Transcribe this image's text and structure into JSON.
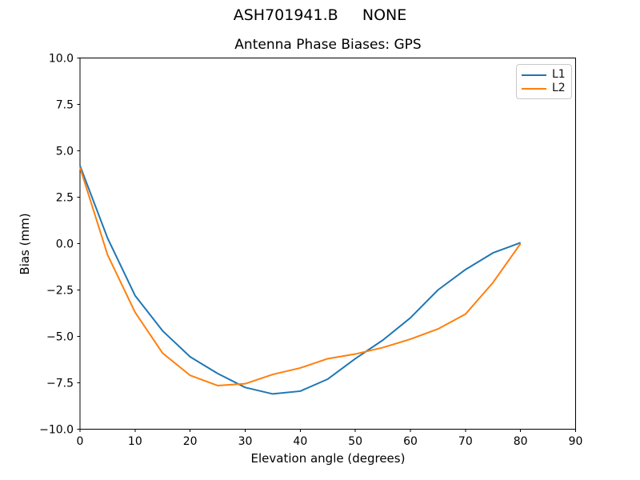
{
  "figure": {
    "suptitle": "ASH701941.B     NONE"
  },
  "chart_data": {
    "type": "line",
    "title": "Antenna Phase Biases: GPS",
    "xlabel": "Elevation angle (degrees)",
    "ylabel": "Bias (mm)",
    "xlim": [
      0,
      90
    ],
    "ylim": [
      -10,
      10
    ],
    "xticks": [
      0,
      10,
      20,
      30,
      40,
      50,
      60,
      70,
      80,
      90
    ],
    "yticks": [
      {
        "value": 10,
        "label": "10.0"
      },
      {
        "value": 7.5,
        "label": "7.5"
      },
      {
        "value": 5,
        "label": "5.0"
      },
      {
        "value": 2.5,
        "label": "2.5"
      },
      {
        "value": 0,
        "label": "0.0"
      },
      {
        "value": -2.5,
        "label": "−2.5"
      },
      {
        "value": -5,
        "label": "−5.0"
      },
      {
        "value": -7.5,
        "label": "−7.5"
      },
      {
        "value": -10,
        "label": "−10.0"
      }
    ],
    "grid": false,
    "legend": {
      "position": "upper right"
    },
    "x": [
      0,
      5,
      10,
      15,
      20,
      25,
      30,
      35,
      40,
      45,
      50,
      55,
      60,
      65,
      70,
      75,
      80
    ],
    "series": [
      {
        "name": "L1",
        "color": "#1f77b4",
        "values": [
          4.2,
          0.3,
          -2.8,
          -4.7,
          -6.1,
          -7.0,
          -7.75,
          -8.1,
          -7.95,
          -7.3,
          -6.2,
          -5.2,
          -4.0,
          -2.5,
          -1.4,
          -0.5,
          0.05
        ]
      },
      {
        "name": "L2",
        "color": "#ff7f0e",
        "values": [
          4.1,
          -0.6,
          -3.7,
          -5.9,
          -7.1,
          -7.65,
          -7.55,
          -7.05,
          -6.7,
          -6.2,
          -5.95,
          -5.6,
          -5.15,
          -4.6,
          -3.8,
          -2.1,
          0.0
        ]
      }
    ],
    "axis_color": "#000000"
  }
}
